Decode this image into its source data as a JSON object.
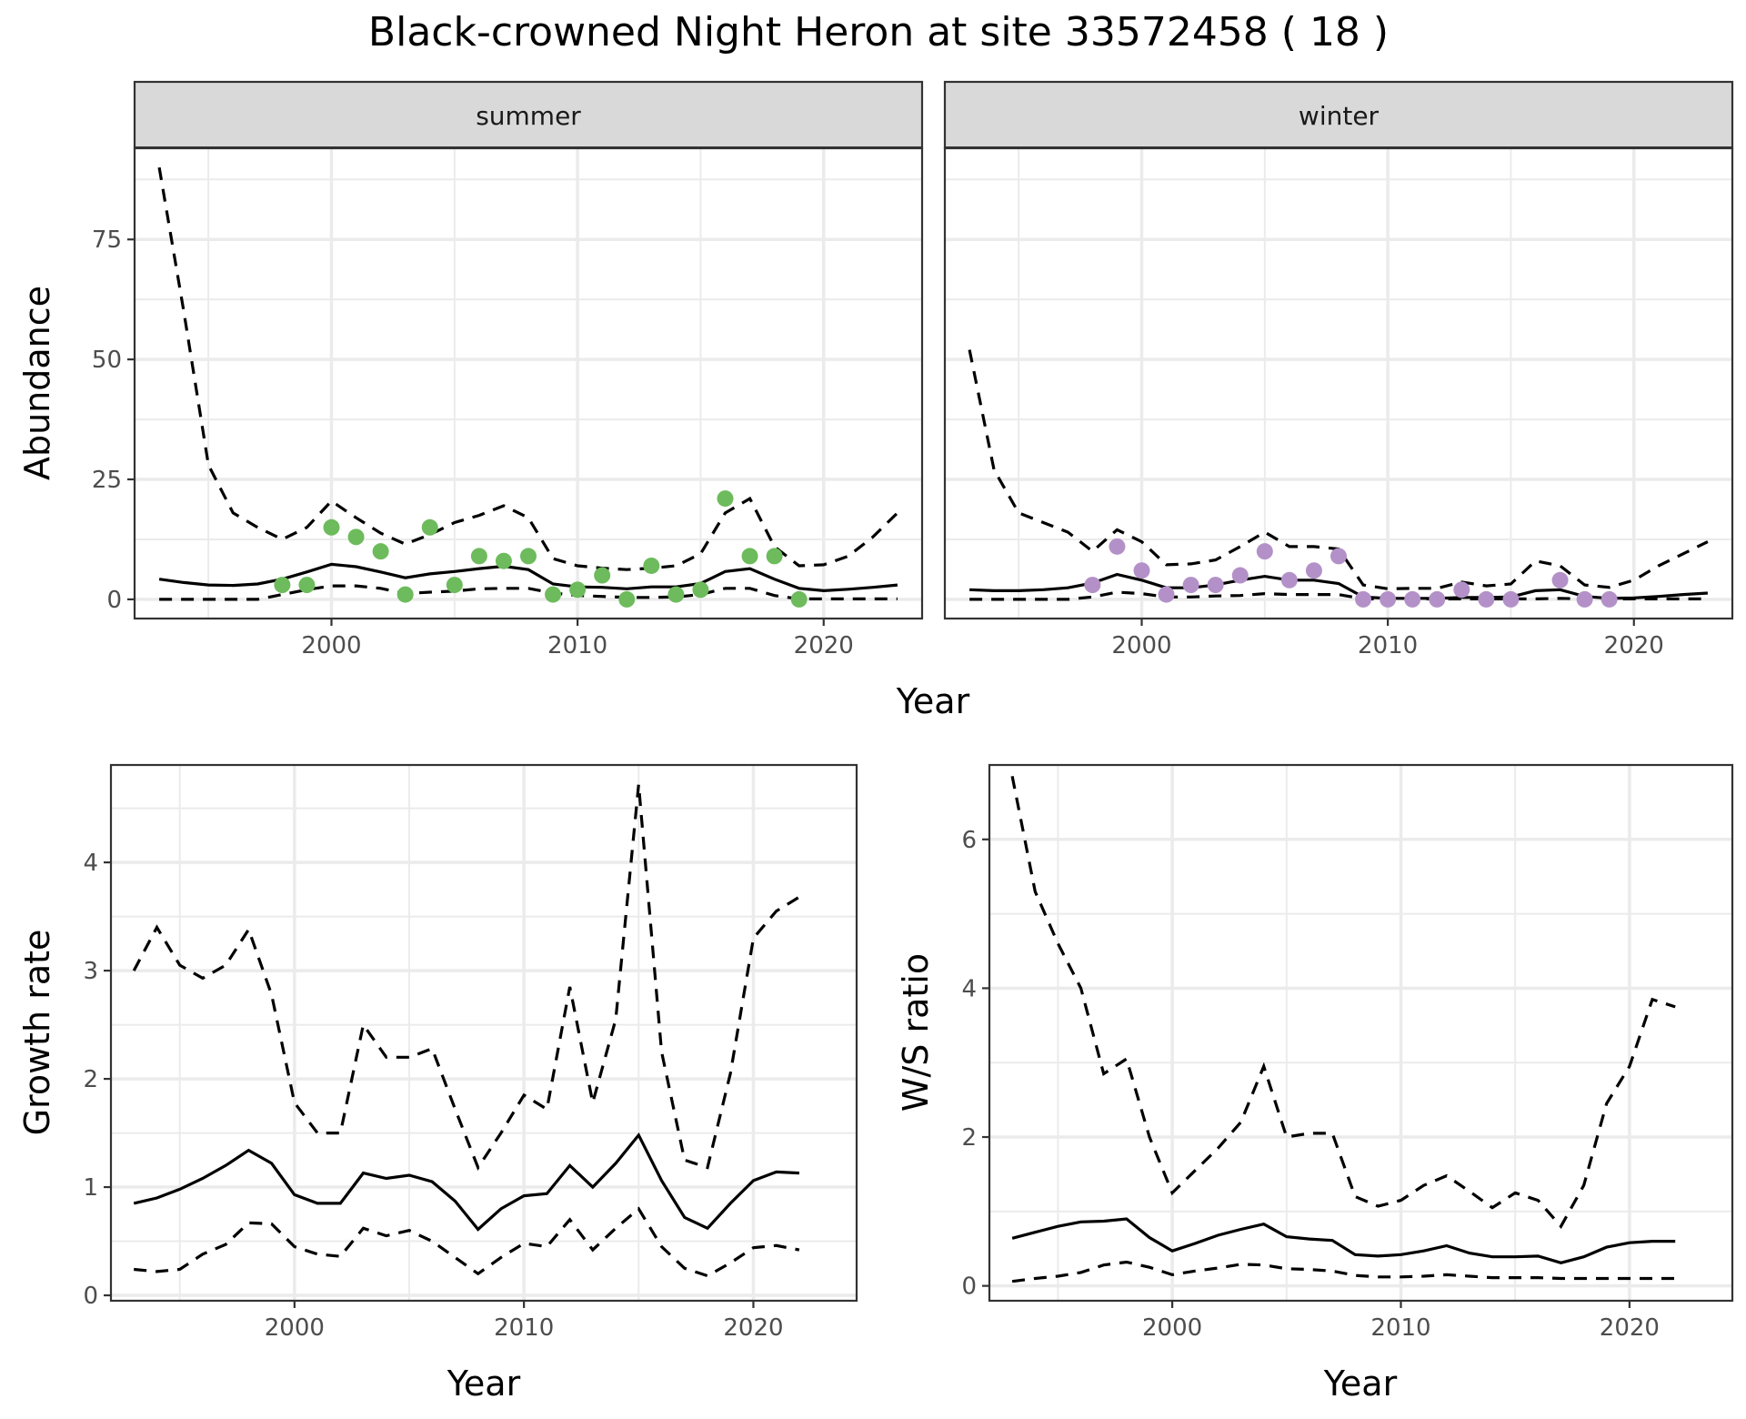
{
  "title": "Black-crowned Night Heron at site 33572458 ( 18 )",
  "colors": {
    "summer_points": "#6dbb5c",
    "winter_points": "#b391c8",
    "lines": "#000000",
    "grid": "#ebebeb",
    "strip_bg": "#d9d9d9",
    "border": "#333333"
  },
  "chart_data": [
    {
      "id": "abundance",
      "type": "line",
      "facets": [
        "summer",
        "winter"
      ],
      "xlabel": "Year",
      "ylabel": "Abundance",
      "xlim": [
        1992,
        2024
      ],
      "ylim": [
        -4,
        94
      ],
      "xticks": [
        2000,
        2010,
        2020
      ],
      "yticks": [
        0,
        25,
        50,
        75
      ],
      "panels": [
        {
          "facet": "summer",
          "x": [
            1993,
            1994,
            1995,
            1996,
            1997,
            1998,
            1999,
            2000,
            2001,
            2002,
            2003,
            2004,
            2005,
            2006,
            2007,
            2008,
            2009,
            2010,
            2011,
            2012,
            2013,
            2014,
            2015,
            2016,
            2017,
            2018,
            2019,
            2020,
            2021,
            2022,
            2023
          ],
          "mean": [
            4.2,
            3.5,
            3.0,
            2.9,
            3.2,
            4.2,
            5.7,
            7.3,
            6.8,
            5.7,
            4.5,
            5.3,
            5.8,
            6.4,
            6.9,
            6.2,
            3.2,
            2.6,
            2.5,
            2.2,
            2.6,
            2.6,
            3.3,
            5.8,
            6.4,
            4.2,
            2.3,
            1.8,
            2.1,
            2.5,
            3.0
          ],
          "upper": [
            90,
            60,
            28,
            18,
            15,
            12.5,
            15,
            20.5,
            17,
            13.8,
            11.5,
            13.5,
            16,
            17.5,
            19.5,
            17,
            8.5,
            7,
            6.5,
            6.2,
            6.5,
            7,
            9.5,
            18,
            21,
            11,
            7,
            7.2,
            9,
            13,
            18
          ],
          "lower": [
            0,
            0,
            0,
            0,
            0,
            1,
            2,
            2.8,
            2.8,
            2.3,
            1.2,
            1.5,
            1.7,
            2.2,
            2.3,
            2.3,
            1.3,
            0.8,
            0.6,
            0.4,
            0.4,
            0.5,
            1,
            2.3,
            2.3,
            0.8,
            0.1,
            0.1,
            0.1,
            0.1,
            0.1
          ],
          "observed": {
            "x": [
              1998,
              1999,
              2000,
              2001,
              2002,
              2003,
              2004,
              2005,
              2006,
              2007,
              2008,
              2009,
              2010,
              2011,
              2012,
              2013,
              2014,
              2015,
              2016,
              2017,
              2018,
              2019
            ],
            "y": [
              3,
              3,
              15,
              13,
              10,
              1,
              15,
              3,
              9,
              8,
              9,
              1,
              2,
              5,
              0,
              7,
              1,
              2,
              21,
              9,
              9,
              0
            ]
          }
        },
        {
          "facet": "winter",
          "x": [
            1993,
            1994,
            1995,
            1996,
            1997,
            1998,
            1999,
            2000,
            2001,
            2002,
            2003,
            2004,
            2005,
            2006,
            2007,
            2008,
            2009,
            2010,
            2011,
            2012,
            2013,
            2014,
            2015,
            2016,
            2017,
            2018,
            2019,
            2020,
            2021,
            2022,
            2023
          ],
          "mean": [
            2.0,
            1.8,
            1.8,
            2.0,
            2.4,
            3.4,
            5.2,
            4.0,
            2.4,
            2.4,
            3.0,
            4.0,
            4.8,
            4.0,
            4.0,
            3.3,
            0.5,
            0.2,
            0.2,
            0.2,
            0.4,
            0.4,
            0.5,
            1.8,
            2.0,
            0.6,
            0.2,
            0.3,
            0.6,
            1.0,
            1.3
          ],
          "upper": [
            52,
            27,
            18,
            16,
            14,
            10,
            14.5,
            12,
            7.2,
            7.4,
            8.2,
            11,
            14,
            11,
            11,
            10.5,
            3,
            2.2,
            2.3,
            2.3,
            3.6,
            2.8,
            3.2,
            8,
            7,
            3,
            2.5,
            4,
            7,
            9.5,
            12
          ],
          "lower": [
            0,
            0,
            0,
            0,
            0,
            0.5,
            1.5,
            1.2,
            0.5,
            0.5,
            0.7,
            0.8,
            1.2,
            1.0,
            1.0,
            1.0,
            0.1,
            0.1,
            0.1,
            0.1,
            0.1,
            0.1,
            0.1,
            0.1,
            0.2,
            0.1,
            0.1,
            0.1,
            0.1,
            0.1,
            0.1
          ],
          "observed": {
            "x": [
              1998,
              1999,
              2000,
              2001,
              2002,
              2003,
              2004,
              2005,
              2006,
              2007,
              2008,
              2009,
              2010,
              2011,
              2012,
              2013,
              2014,
              2015,
              2017,
              2018,
              2019
            ],
            "y": [
              3,
              11,
              6,
              1,
              3,
              3,
              5,
              10,
              4,
              6,
              9,
              0,
              0,
              0,
              0,
              2,
              0,
              0,
              4,
              0,
              0
            ]
          }
        }
      ]
    },
    {
      "id": "growth_rate",
      "type": "line",
      "xlabel": "Year",
      "ylabel": "Growth rate",
      "xlim": [
        1992,
        2024.5
      ],
      "ylim": [
        -0.05,
        4.9
      ],
      "xticks": [
        2000,
        2010,
        2020
      ],
      "yticks": [
        0,
        1,
        2,
        3,
        4
      ],
      "x": [
        1993,
        1994,
        1995,
        1996,
        1997,
        1998,
        1999,
        2000,
        2001,
        2002,
        2003,
        2004,
        2005,
        2006,
        2007,
        2008,
        2009,
        2010,
        2011,
        2012,
        2013,
        2014,
        2015,
        2016,
        2017,
        2018,
        2019,
        2020,
        2021,
        2022
      ],
      "mean": [
        0.85,
        0.9,
        0.98,
        1.08,
        1.2,
        1.34,
        1.22,
        0.93,
        0.85,
        0.85,
        1.13,
        1.08,
        1.11,
        1.05,
        0.87,
        0.61,
        0.8,
        0.92,
        0.94,
        1.2,
        1.0,
        1.22,
        1.48,
        1.06,
        0.72,
        0.62,
        0.85,
        1.06,
        1.14,
        1.13
      ],
      "upper": [
        3.0,
        3.4,
        3.05,
        2.93,
        3.05,
        3.38,
        2.78,
        1.78,
        1.5,
        1.5,
        2.5,
        2.2,
        2.2,
        2.28,
        1.72,
        1.18,
        1.5,
        1.85,
        1.72,
        2.85,
        1.78,
        2.55,
        4.72,
        2.25,
        1.25,
        1.18,
        2.05,
        3.3,
        3.55,
        3.68
      ],
      "lower": [
        0.24,
        0.22,
        0.24,
        0.38,
        0.47,
        0.67,
        0.66,
        0.45,
        0.38,
        0.36,
        0.62,
        0.55,
        0.6,
        0.5,
        0.35,
        0.2,
        0.35,
        0.48,
        0.45,
        0.7,
        0.42,
        0.62,
        0.8,
        0.45,
        0.25,
        0.18,
        0.3,
        0.44,
        0.46,
        0.42
      ]
    },
    {
      "id": "ws_ratio",
      "type": "line",
      "xlabel": "Year",
      "ylabel": "W/S ratio",
      "xlim": [
        1992,
        2024.5
      ],
      "ylim": [
        -0.2,
        7.0
      ],
      "xticks": [
        2000,
        2010,
        2020
      ],
      "yticks": [
        0,
        2,
        4,
        6
      ],
      "x": [
        1993,
        1994,
        1995,
        1996,
        1997,
        1998,
        1999,
        2000,
        2001,
        2002,
        2003,
        2004,
        2005,
        2006,
        2007,
        2008,
        2009,
        2010,
        2011,
        2012,
        2013,
        2014,
        2015,
        2016,
        2017,
        2018,
        2019,
        2020,
        2021,
        2022
      ],
      "mean": [
        0.64,
        0.72,
        0.8,
        0.86,
        0.87,
        0.9,
        0.65,
        0.47,
        0.57,
        0.68,
        0.76,
        0.83,
        0.66,
        0.63,
        0.61,
        0.42,
        0.4,
        0.42,
        0.47,
        0.54,
        0.44,
        0.39,
        0.39,
        0.4,
        0.31,
        0.39,
        0.52,
        0.58,
        0.6,
        0.6
      ],
      "upper": [
        6.85,
        5.3,
        4.6,
        4.0,
        2.85,
        3.05,
        2.0,
        1.25,
        1.55,
        1.85,
        2.2,
        2.95,
        2.0,
        2.05,
        2.05,
        1.2,
        1.07,
        1.15,
        1.35,
        1.48,
        1.27,
        1.05,
        1.25,
        1.15,
        0.8,
        1.35,
        2.45,
        2.95,
        3.85,
        3.75
      ],
      "lower": [
        0.06,
        0.1,
        0.13,
        0.18,
        0.28,
        0.32,
        0.25,
        0.15,
        0.2,
        0.24,
        0.29,
        0.28,
        0.23,
        0.22,
        0.2,
        0.14,
        0.12,
        0.12,
        0.13,
        0.15,
        0.13,
        0.11,
        0.11,
        0.11,
        0.1,
        0.1,
        0.1,
        0.1,
        0.1,
        0.1
      ]
    }
  ]
}
